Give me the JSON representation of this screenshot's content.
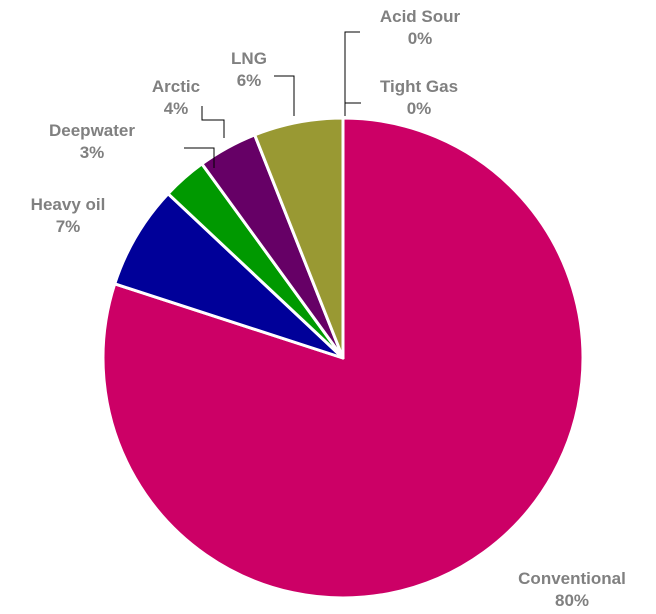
{
  "chart_data": {
    "type": "pie",
    "start_angle_deg": 0,
    "direction": "clockwise",
    "slices": [
      {
        "label": "Conventional",
        "value": 80,
        "value_label": "80%",
        "color": "#cc0066"
      },
      {
        "label": "Heavy oil",
        "value": 7,
        "value_label": "7%",
        "color": "#000099"
      },
      {
        "label": "Deepwater",
        "value": 3,
        "value_label": "3%",
        "color": "#009900"
      },
      {
        "label": "Arctic",
        "value": 4,
        "value_label": "4%",
        "color": "#660066"
      },
      {
        "label": "LNG",
        "value": 6,
        "value_label": "6%",
        "color": "#999933"
      },
      {
        "label": "Acid Sour",
        "value": 0,
        "value_label": "0%",
        "color": "#808080"
      },
      {
        "label": "Tight Gas",
        "value": 0,
        "value_label": "0%",
        "color": "#808080"
      }
    ],
    "label_color": "#808080"
  }
}
